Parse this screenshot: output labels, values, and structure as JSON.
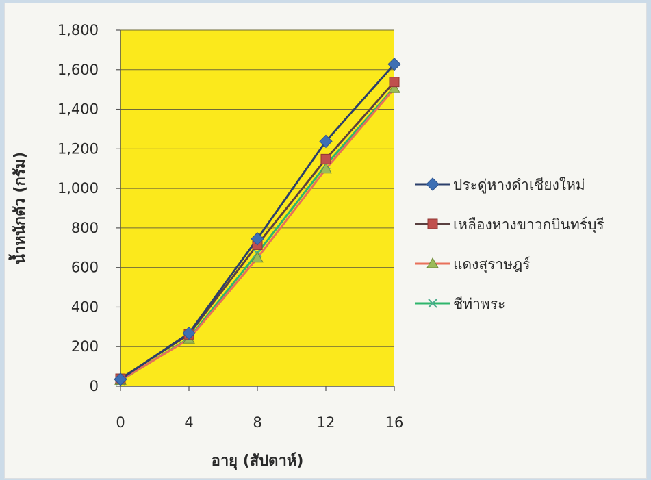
{
  "chart_data": {
    "type": "line",
    "title": "",
    "xlabel": "อายุ (สัปดาห์)",
    "ylabel": "น้ำหนักตัว (กรัม)",
    "x": [
      0,
      4,
      8,
      12,
      16
    ],
    "x_tick_labels": [
      "0",
      "4",
      "8",
      "12",
      "16"
    ],
    "ylim": [
      0,
      1800
    ],
    "y_tick_labels": [
      "0",
      "200",
      "400",
      "600",
      "800",
      "1,000",
      "1,200",
      "1,400",
      "1,600",
      "1,800"
    ],
    "grid": true,
    "plot_background": "#fbe91c",
    "legend_position": "right",
    "series": [
      {
        "name": "ประดู่หางดำเชียงใหม่",
        "values": [
          35,
          268,
          745,
          1238,
          1628
        ],
        "color": "#3d6fb4",
        "marker": "diamond"
      },
      {
        "name": "เหลืองหางขาวกบินทร์บุรี",
        "values": [
          38,
          262,
          715,
          1148,
          1538
        ],
        "color": "#c0504d",
        "marker": "square"
      },
      {
        "name": "แดงสุราษฎร์",
        "values": [
          30,
          238,
          648,
          1098,
          1505
        ],
        "color": "#9bbb59",
        "marker": "triangle"
      },
      {
        "name": "ชีท่าพระ",
        "values": [
          28,
          242,
          672,
          1118,
          1510
        ],
        "color": "#4bac8c",
        "marker": "x"
      }
    ]
  }
}
